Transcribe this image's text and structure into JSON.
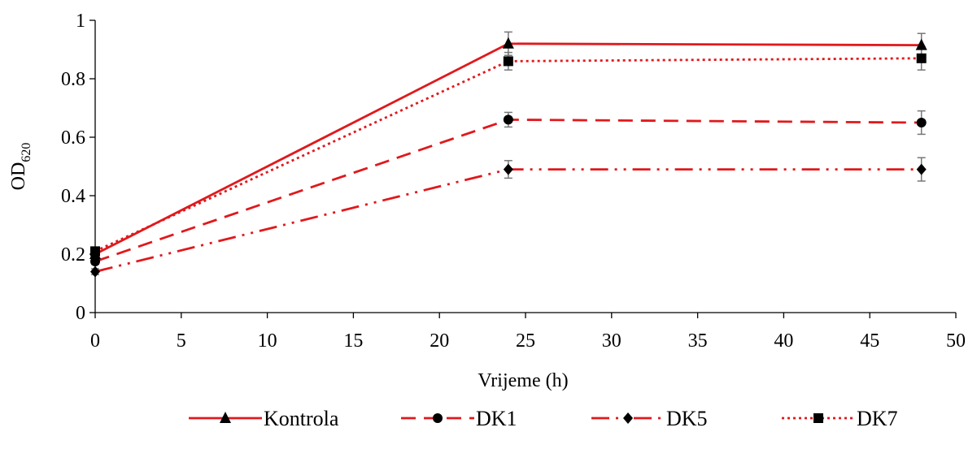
{
  "chart_data": {
    "type": "line",
    "xlabel": "Vrijeme (h)",
    "ylabel_main": "OD",
    "ylabel_sub": "620",
    "xlim": [
      0,
      50
    ],
    "ylim": [
      0,
      1
    ],
    "xticks": [
      0,
      5,
      10,
      15,
      20,
      25,
      30,
      35,
      40,
      45,
      50
    ],
    "xtick_labels": [
      "0",
      "5",
      "10",
      "15",
      "20",
      "25",
      "30",
      "35",
      "40",
      "45",
      "50"
    ],
    "yticks": [
      0,
      0.2,
      0.4,
      0.6,
      0.8,
      1
    ],
    "ytick_labels": [
      "0",
      "0.2",
      "0.4",
      "0.6",
      "0.8",
      "1"
    ],
    "grid": false,
    "legend_position": "bottom",
    "series": [
      {
        "name": "Kontrola",
        "marker": "triangle",
        "dash": "solid",
        "color": "#e0191c",
        "x": [
          0,
          24,
          48
        ],
        "y": [
          0.2,
          0.92,
          0.915
        ],
        "err": [
          0.01,
          0.04,
          0.04
        ]
      },
      {
        "name": "DK1",
        "marker": "circle",
        "dash": "dashed",
        "color": "#e0191c",
        "x": [
          0,
          24,
          48
        ],
        "y": [
          0.175,
          0.66,
          0.65
        ],
        "err": [
          0.01,
          0.025,
          0.04
        ]
      },
      {
        "name": "DK5",
        "marker": "diamond",
        "dash": "dash-dot-dot",
        "color": "#e0191c",
        "x": [
          0,
          24,
          48
        ],
        "y": [
          0.14,
          0.49,
          0.49
        ],
        "err": [
          0.01,
          0.03,
          0.04
        ]
      },
      {
        "name": "DK7",
        "marker": "square",
        "dash": "dotted",
        "color": "#e0191c",
        "x": [
          0,
          24,
          48
        ],
        "y": [
          0.21,
          0.86,
          0.87
        ],
        "err": [
          0.01,
          0.03,
          0.04
        ]
      }
    ]
  }
}
